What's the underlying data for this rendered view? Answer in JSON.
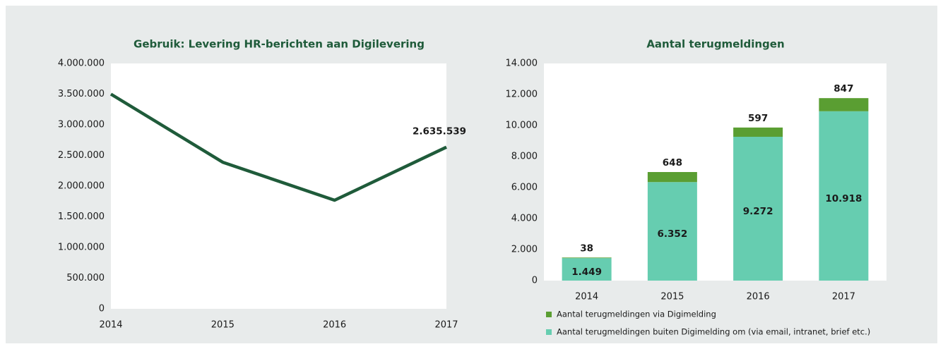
{
  "chart_data": [
    {
      "type": "line",
      "title": "Gebruik: Levering HR-berichten aan Digilevering",
      "categories": [
        "2014",
        "2015",
        "2016",
        "2017"
      ],
      "values": [
        3500000,
        2390000,
        1770000,
        2635539
      ],
      "value_labels": [
        null,
        null,
        null,
        "2.635.539"
      ],
      "color": "#1f5b3a",
      "ylim": [
        0,
        4000000
      ],
      "yticks": [
        0,
        {
          "value": 500000,
          "label": "500.000"
        },
        {
          "value": 1000000,
          "label": "1.000.000"
        },
        {
          "value": 1500000,
          "label": "1.500.000"
        },
        {
          "value": 2000000,
          "label": "2.000.000"
        },
        {
          "value": 2500000,
          "label": "2.500.000"
        },
        {
          "value": 3000000,
          "label": "3.000.000"
        },
        {
          "value": 3500000,
          "label": "3.500.000"
        },
        {
          "value": 4000000,
          "label": "4.000.000"
        }
      ]
    },
    {
      "type": "stacked_bar",
      "title": "Aantal terugmeldingen",
      "categories": [
        "2014",
        "2015",
        "2016",
        "2017"
      ],
      "series": [
        {
          "name": "Aantal terugmeldingen buiten Digimelding om (via email, intranet, brief etc.)",
          "color": "#66cdb0",
          "values": [
            1449,
            6352,
            9272,
            10918
          ],
          "value_labels": [
            "1.449",
            "6.352",
            "9.272",
            "10.918"
          ]
        },
        {
          "name": "Aantal terugmeldingen via Digimelding",
          "color": "#5a9e32",
          "values": [
            38,
            648,
            597,
            847
          ]
        }
      ],
      "ylim": [
        0,
        14000
      ],
      "yticks": [
        0,
        {
          "value": 2000,
          "label": "2.000"
        },
        {
          "value": 4000,
          "label": "4.000"
        },
        {
          "value": 6000,
          "label": "6.000"
        },
        {
          "value": 8000,
          "label": "8.000"
        },
        {
          "value": 10000,
          "label": "10.000"
        },
        {
          "value": 12000,
          "label": "12.000"
        },
        {
          "value": 14000,
          "label": "14.000"
        }
      ]
    }
  ]
}
